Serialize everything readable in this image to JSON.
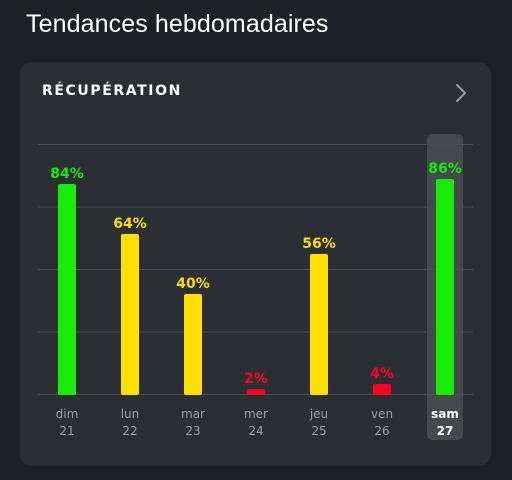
{
  "page": {
    "title": "Tendances hebdomadaires"
  },
  "card": {
    "title": "RÉCUPÉRATION",
    "chevron_icon": "chevron-right-icon"
  },
  "colors": {
    "background": "#1d2024",
    "card": "#2b2e33",
    "green": "#16ec06",
    "yellow": "#ffde00",
    "red": "#ff0026",
    "grid": "#4a4d52",
    "day_label": "#9a9da2",
    "highlight": "#45484c"
  },
  "chart_data": {
    "type": "bar",
    "ylim": [
      0,
      100
    ],
    "grid": true,
    "categories": [
      {
        "day": "dim",
        "date": "21"
      },
      {
        "day": "lun",
        "date": "22"
      },
      {
        "day": "mar",
        "date": "23"
      },
      {
        "day": "mer",
        "date": "24"
      },
      {
        "day": "jeu",
        "date": "25"
      },
      {
        "day": "ven",
        "date": "26"
      },
      {
        "day": "sam",
        "date": "27"
      }
    ],
    "values": [
      84,
      64,
      40,
      2,
      56,
      4,
      86
    ],
    "value_labels": [
      "84%",
      "64%",
      "40%",
      "2%",
      "56%",
      "4%",
      "86%"
    ],
    "zones": [
      "green",
      "yellow",
      "yellow",
      "red",
      "yellow",
      "red",
      "green"
    ],
    "selected_index": 6
  }
}
